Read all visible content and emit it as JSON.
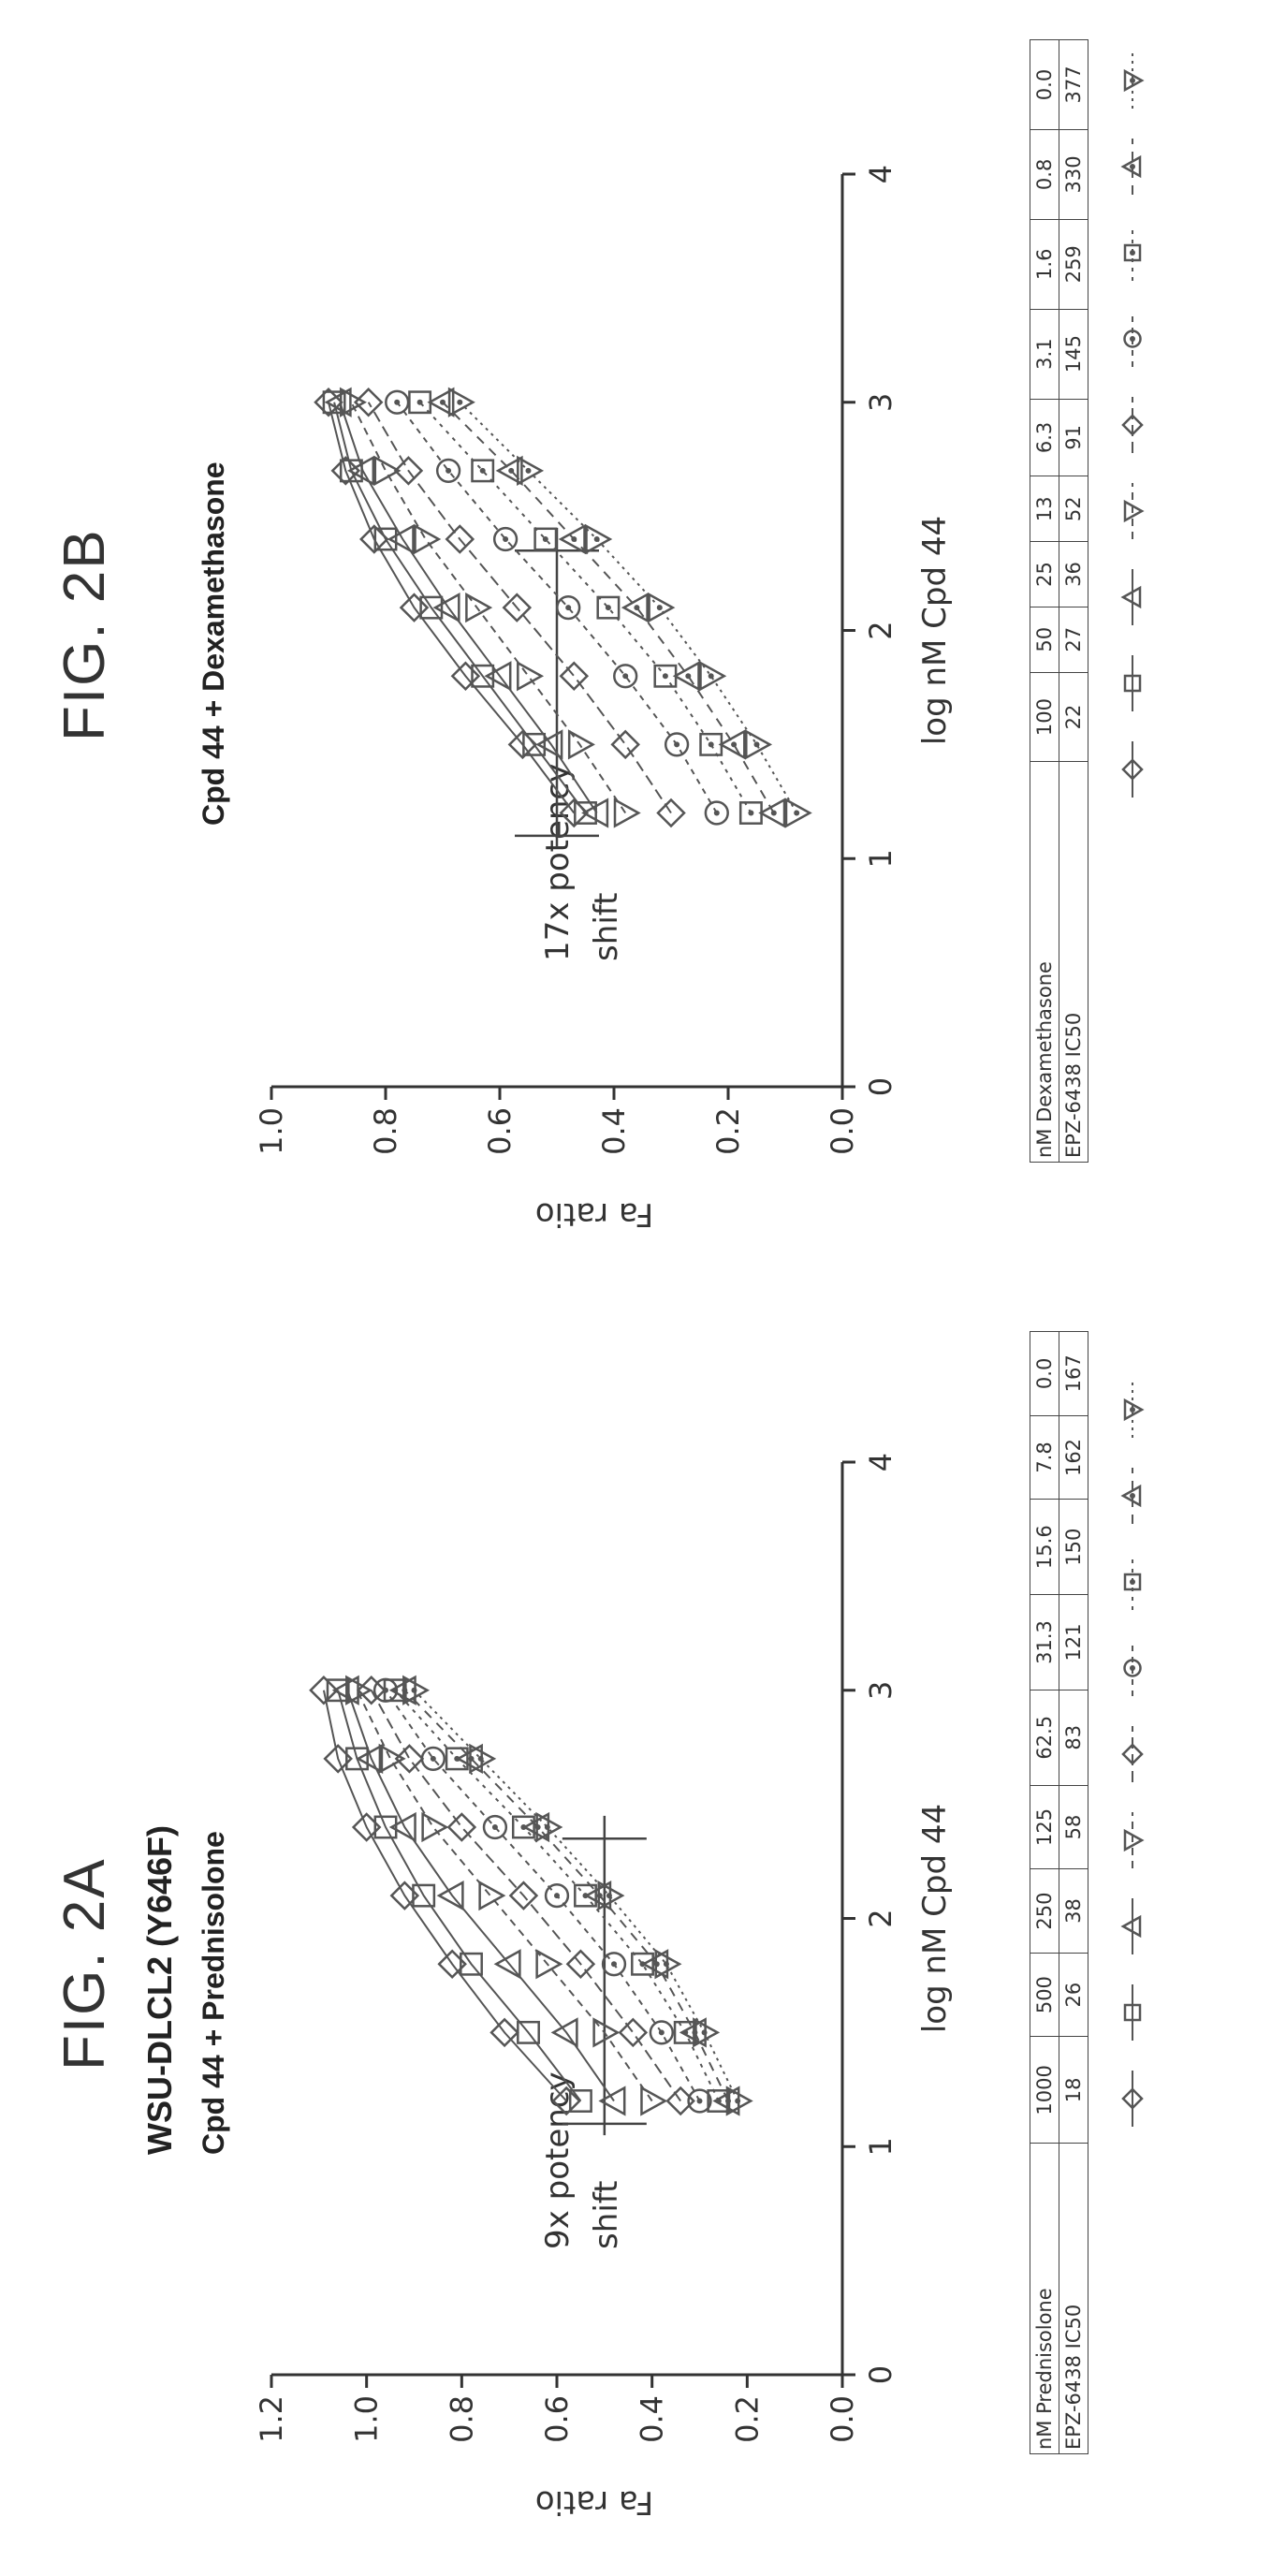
{
  "figures": [
    {
      "fig_label": "FIG. 2A",
      "cell_line": "WSU-DLCL2 (Y646F)",
      "subtitle": "Cpd 44 + Prednisolone",
      "annotation": [
        "9x potency",
        "shift"
      ],
      "table": {
        "row1_label": "nM Prednisolone",
        "row1_values": [
          "1000",
          "500",
          "250",
          "125",
          "62.5",
          "31.3",
          "15.6",
          "7.8",
          "0.0"
        ],
        "row2_label": "EPZ-6438 IC50",
        "row2_values": [
          "18",
          "26",
          "38",
          "58",
          "83",
          "121",
          "150",
          "162",
          "167"
        ]
      }
    },
    {
      "fig_label": "FIG. 2B",
      "cell_line": "",
      "subtitle": "Cpd 44 + Dexamethasone",
      "annotation": [
        "17x potency",
        "shift"
      ],
      "table": {
        "row1_label": "nM Dexamethasone",
        "row1_values": [
          "100",
          "50",
          "25",
          "13",
          "6.3",
          "3.1",
          "1.6",
          "0.8",
          "0.0"
        ],
        "row2_label": "EPZ-6438 IC50",
        "row2_values": [
          "22",
          "27",
          "36",
          "52",
          "91",
          "145",
          "259",
          "330",
          "377"
        ]
      }
    }
  ],
  "chart_data": [
    {
      "type": "scatter",
      "title": "Cpd 44 + Prednisolone",
      "xlabel": "log nM Cpd 44",
      "ylabel": "Fa ratio",
      "xlim": [
        0,
        4
      ],
      "ylim": [
        0,
        1.2
      ],
      "xticks": [
        "0",
        "1",
        "2",
        "3",
        "4"
      ],
      "yticks": [
        "0.0",
        "0.2",
        "0.4",
        "0.6",
        "0.8",
        "1.0",
        "1.2"
      ],
      "reference_y": 0.5,
      "x": [
        1.2,
        1.5,
        1.8,
        2.1,
        2.4,
        2.7,
        3.0
      ],
      "series": [
        {
          "marker": "diamond-filled",
          "values": [
            0.58,
            0.71,
            0.82,
            0.92,
            1.0,
            1.06,
            1.09
          ]
        },
        {
          "marker": "square",
          "values": [
            0.55,
            0.66,
            0.78,
            0.88,
            0.96,
            1.02,
            1.06
          ]
        },
        {
          "marker": "triangle-up",
          "values": [
            0.48,
            0.58,
            0.7,
            0.82,
            0.92,
            0.99,
            1.04
          ]
        },
        {
          "marker": "triangle-down",
          "values": [
            0.4,
            0.5,
            0.62,
            0.74,
            0.86,
            0.95,
            1.02
          ]
        },
        {
          "marker": "diamond",
          "values": [
            0.34,
            0.44,
            0.55,
            0.67,
            0.8,
            0.91,
            0.99
          ]
        },
        {
          "marker": "circle-dot",
          "values": [
            0.3,
            0.38,
            0.48,
            0.6,
            0.73,
            0.86,
            0.96
          ]
        },
        {
          "marker": "square-dot",
          "values": [
            0.26,
            0.33,
            0.42,
            0.54,
            0.67,
            0.81,
            0.94
          ]
        },
        {
          "marker": "triangle-dot",
          "values": [
            0.24,
            0.31,
            0.39,
            0.51,
            0.64,
            0.78,
            0.92
          ]
        },
        {
          "marker": "triangle-down-dot",
          "values": [
            0.22,
            0.29,
            0.37,
            0.49,
            0.62,
            0.76,
            0.9
          ]
        }
      ]
    },
    {
      "type": "scatter",
      "title": "Cpd 44 + Dexamethasone",
      "xlabel": "log nM Cpd 44",
      "ylabel": "Fa ratio",
      "xlim": [
        0,
        4
      ],
      "ylim": [
        0,
        1.0
      ],
      "xticks": [
        "0",
        "1",
        "2",
        "3",
        "4"
      ],
      "yticks": [
        "0.0",
        "0.2",
        "0.4",
        "0.6",
        "0.8",
        "1.0"
      ],
      "reference_y": 0.5,
      "x": [
        1.2,
        1.5,
        1.8,
        2.1,
        2.4,
        2.7,
        3.0
      ],
      "series": [
        {
          "marker": "diamond-filled",
          "values": [
            0.47,
            0.56,
            0.66,
            0.75,
            0.82,
            0.87,
            0.9
          ]
        },
        {
          "marker": "square",
          "values": [
            0.45,
            0.54,
            0.63,
            0.72,
            0.8,
            0.86,
            0.89
          ]
        },
        {
          "marker": "triangle-up",
          "values": [
            0.43,
            0.51,
            0.6,
            0.69,
            0.77,
            0.84,
            0.88
          ]
        },
        {
          "marker": "triangle-down",
          "values": [
            0.38,
            0.46,
            0.55,
            0.64,
            0.73,
            0.8,
            0.86
          ]
        },
        {
          "marker": "diamond",
          "values": [
            0.3,
            0.38,
            0.47,
            0.57,
            0.67,
            0.76,
            0.83
          ]
        },
        {
          "marker": "circle-dot",
          "values": [
            0.22,
            0.29,
            0.38,
            0.48,
            0.59,
            0.69,
            0.78
          ]
        },
        {
          "marker": "square-dot",
          "values": [
            0.16,
            0.23,
            0.31,
            0.41,
            0.52,
            0.63,
            0.74
          ]
        },
        {
          "marker": "triangle-dot",
          "values": [
            0.12,
            0.19,
            0.27,
            0.36,
            0.47,
            0.58,
            0.7
          ]
        },
        {
          "marker": "triangle-down-dot",
          "values": [
            0.08,
            0.15,
            0.23,
            0.32,
            0.43,
            0.55,
            0.67
          ]
        }
      ]
    }
  ]
}
